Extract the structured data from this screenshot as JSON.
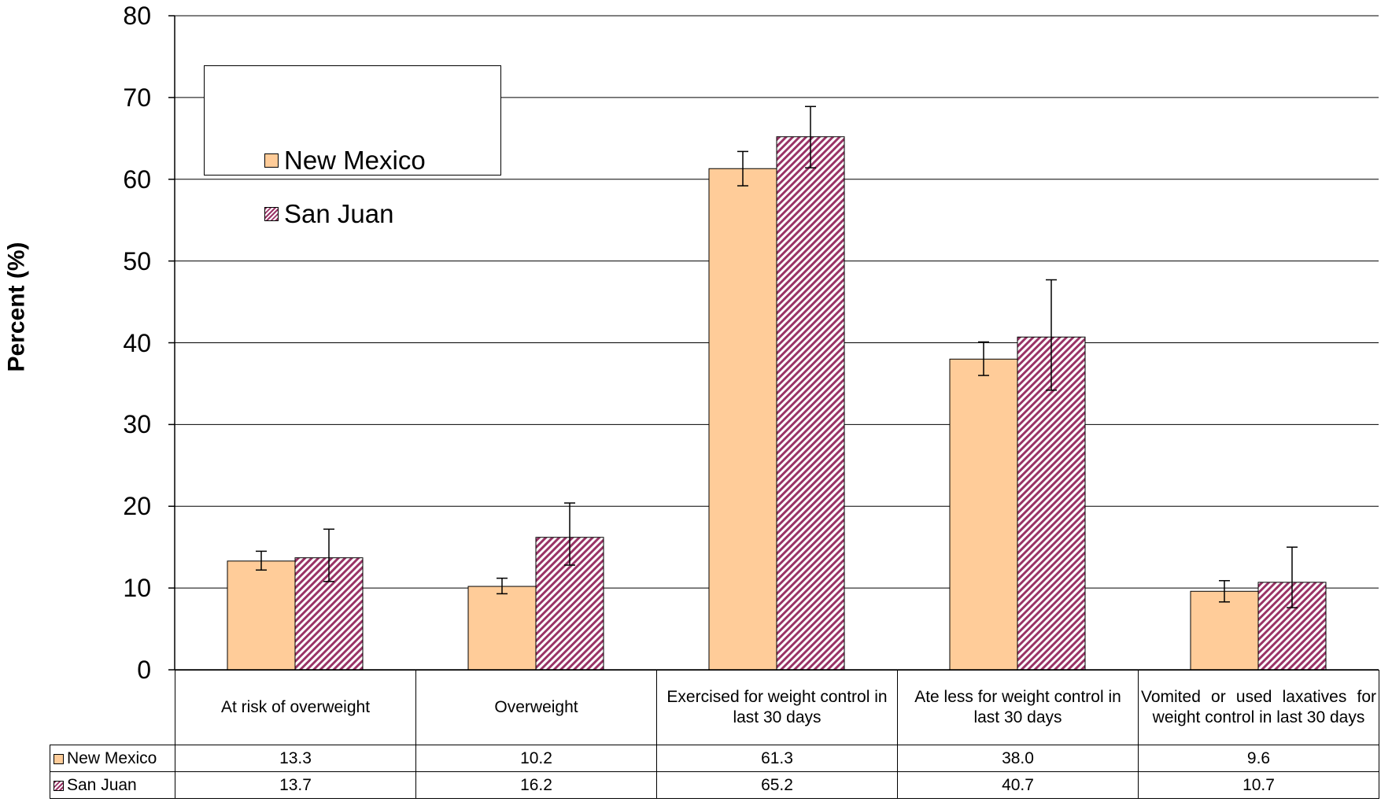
{
  "chart_data": {
    "type": "bar",
    "title": "",
    "xlabel": "",
    "ylabel": "Percent (%)",
    "ylim": [
      0,
      80
    ],
    "yticks": [
      0,
      10,
      20,
      30,
      40,
      50,
      60,
      70,
      80
    ],
    "grid": true,
    "legend": "top-left",
    "categories": [
      "At risk of overweight",
      "Overweight",
      "Exercised for weight control in last 30 days",
      "Ate less for weight control in last 30 days",
      "Vomited or used laxatives for weight control in last 30 days"
    ],
    "series": [
      {
        "name": "New Mexico",
        "color": "#ffcc99",
        "pattern": "solid",
        "values": [
          13.3,
          10.2,
          61.3,
          38.0,
          9.6
        ],
        "labels": [
          "13.3",
          "10.2",
          "61.3",
          "38.0",
          "9.6"
        ],
        "ci_low": [
          12.2,
          9.3,
          59.2,
          36.0,
          8.3
        ],
        "ci_high": [
          14.5,
          11.2,
          63.4,
          40.1,
          10.9
        ]
      },
      {
        "name": "San Juan",
        "color": "#993366",
        "pattern": "diagonal-hatch",
        "values": [
          13.7,
          16.2,
          65.2,
          40.7,
          10.7
        ],
        "labels": [
          "13.7",
          "16.2",
          "65.2",
          "40.7",
          "10.7"
        ],
        "ci_low": [
          10.8,
          12.8,
          61.4,
          34.2,
          7.6
        ],
        "ci_high": [
          17.2,
          20.4,
          68.9,
          47.7,
          15.0
        ]
      }
    ],
    "data_table": true
  }
}
